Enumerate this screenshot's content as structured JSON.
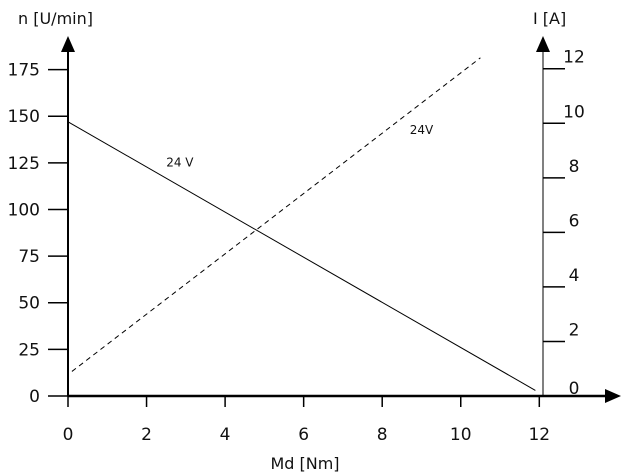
{
  "chart_data": {
    "type": "line",
    "x_axis": {
      "label": "Md [Nm]",
      "ticks": [
        0,
        2,
        4,
        6,
        8,
        10,
        12
      ],
      "range": [
        0,
        13.8
      ]
    },
    "y_left_axis": {
      "label": "n [U/min]",
      "ticks": [
        0,
        25,
        50,
        75,
        100,
        125,
        150,
        175
      ],
      "range": [
        0,
        193
      ]
    },
    "y_right_axis": {
      "label": "I [A]",
      "ticks": [
        0,
        2,
        4,
        6,
        8,
        10,
        12
      ],
      "range": [
        0,
        13.2
      ]
    },
    "grid": false,
    "series": [
      {
        "axis": "left",
        "style": "solid",
        "label": "24 V",
        "label_at": [
          2.5,
          123
        ],
        "x": [
          0,
          11.9
        ],
        "y": [
          147,
          3
        ]
      },
      {
        "axis": "right",
        "style": "dashed",
        "label": "24V",
        "label_at": [
          8.7,
          9.6
        ],
        "x": [
          0.1,
          10.5
        ],
        "y": [
          0.9,
          12.4
        ]
      }
    ]
  }
}
